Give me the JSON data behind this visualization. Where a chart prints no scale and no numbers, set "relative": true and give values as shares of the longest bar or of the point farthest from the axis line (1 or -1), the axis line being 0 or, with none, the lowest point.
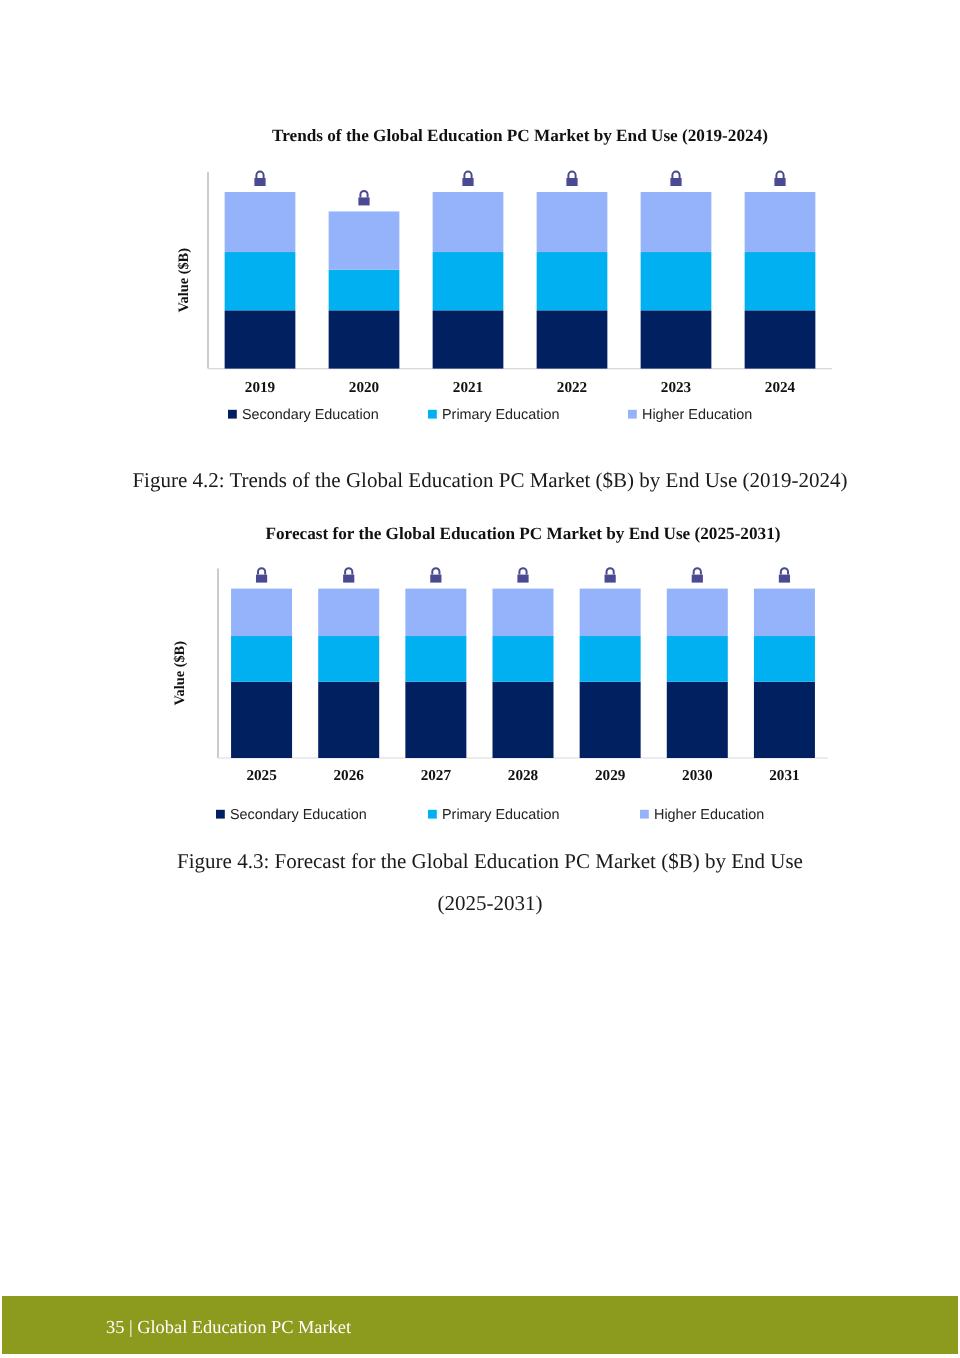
{
  "chart_data": [
    {
      "type": "bar",
      "title": "Trends of the Global Education PC Market by End Use (2019-2024)",
      "ylabel": "Value ($B)",
      "categories": [
        "2019",
        "2020",
        "2021",
        "2022",
        "2023",
        "2024"
      ],
      "stacked": true,
      "relative": true,
      "legend": "bottom",
      "series": [
        {
          "name": "Secondary Education",
          "color": "#002060",
          "values": [
            0.33,
            0.33,
            0.33,
            0.33,
            0.33,
            0.33
          ]
        },
        {
          "name": "Primary Education",
          "color": "#00b0f0",
          "values": [
            0.33,
            0.23,
            0.33,
            0.33,
            0.33,
            0.33
          ]
        },
        {
          "name": "Higher Education",
          "color": "#95b3fa",
          "values": [
            0.34,
            0.33,
            0.34,
            0.34,
            0.34,
            0.34
          ]
        }
      ],
      "annotations": [
        "Figure 4.2: Trends of the Global Education PC Market ($B) by End Use (2019-2024)"
      ]
    },
    {
      "type": "bar",
      "title": "Forecast for the Global Education PC Market by End Use (2025-2031)",
      "ylabel": "Value ($B)",
      "categories": [
        "2025",
        "2026",
        "2027",
        "2028",
        "2029",
        "2030",
        "2031"
      ],
      "stacked": true,
      "relative": true,
      "legend": "bottom",
      "series": [
        {
          "name": "Secondary Education",
          "color": "#002060",
          "values": [
            0.45,
            0.45,
            0.45,
            0.45,
            0.45,
            0.45,
            0.45
          ]
        },
        {
          "name": "Primary Education",
          "color": "#00b0f0",
          "values": [
            0.27,
            0.27,
            0.27,
            0.27,
            0.27,
            0.27,
            0.27
          ]
        },
        {
          "name": "Higher Education",
          "color": "#95b3fa",
          "values": [
            0.28,
            0.28,
            0.28,
            0.28,
            0.28,
            0.28,
            0.28
          ]
        }
      ],
      "annotations": [
        "Figure 4.3: Forecast for the Global Education PC Market ($B) by End Use (2025-2031)",
        "35 | Global Education PC Market"
      ]
    }
  ]
}
